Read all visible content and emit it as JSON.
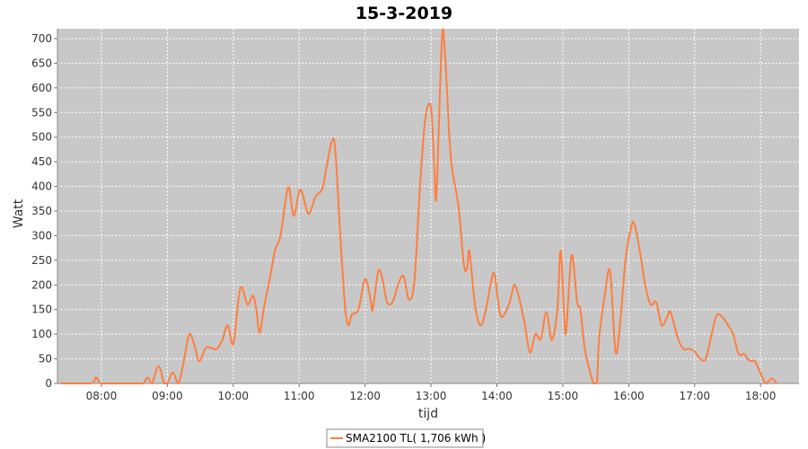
{
  "chart_data": {
    "type": "line",
    "title": "15-3-2019",
    "xlabel": "tijd",
    "ylabel": "Watt",
    "xlim": [
      "07:20",
      "18:35"
    ],
    "ylim": [
      0,
      720
    ],
    "x_ticks": [
      "08:00",
      "09:00",
      "10:00",
      "11:00",
      "12:00",
      "13:00",
      "14:00",
      "15:00",
      "16:00",
      "17:00",
      "18:00"
    ],
    "y_ticks": [
      0,
      50,
      100,
      150,
      200,
      250,
      300,
      350,
      400,
      450,
      500,
      550,
      600,
      650,
      700
    ],
    "grid": true,
    "legend_position": "bottom-center",
    "colors": {
      "series": "#ff7f3f",
      "plot_bg": "#c8c8c8",
      "grid": "#ffffff"
    },
    "series": [
      {
        "name": "SMA2100 TL( 1,706 kWh )",
        "points": [
          [
            "07:23",
            0
          ],
          [
            "07:50",
            0
          ],
          [
            "07:55",
            12
          ],
          [
            "08:00",
            0
          ],
          [
            "08:15",
            0
          ],
          [
            "08:30",
            0
          ],
          [
            "08:38",
            0
          ],
          [
            "08:42",
            12
          ],
          [
            "08:46",
            0
          ],
          [
            "08:52",
            35
          ],
          [
            "08:57",
            0
          ],
          [
            "09:00",
            0
          ],
          [
            "09:05",
            22
          ],
          [
            "09:10",
            0
          ],
          [
            "09:15",
            45
          ],
          [
            "09:20",
            100
          ],
          [
            "09:25",
            75
          ],
          [
            "09:29",
            45
          ],
          [
            "09:35",
            72
          ],
          [
            "09:40",
            72
          ],
          [
            "09:45",
            70
          ],
          [
            "09:50",
            88
          ],
          [
            "09:55",
            118
          ],
          [
            "10:00",
            80
          ],
          [
            "10:05",
            175
          ],
          [
            "10:08",
            195
          ],
          [
            "10:13",
            160
          ],
          [
            "10:18",
            178
          ],
          [
            "10:21",
            150
          ],
          [
            "10:24",
            103
          ],
          [
            "10:28",
            155
          ],
          [
            "10:33",
            210
          ],
          [
            "10:38",
            270
          ],
          [
            "10:43",
            300
          ],
          [
            "10:50",
            398
          ],
          [
            "10:55",
            340
          ],
          [
            "11:00",
            390
          ],
          [
            "11:03",
            385
          ],
          [
            "11:08",
            345
          ],
          [
            "11:12",
            360
          ],
          [
            "11:15",
            380
          ],
          [
            "11:21",
            395
          ],
          [
            "11:25",
            440
          ],
          [
            "11:30",
            493
          ],
          [
            "11:33",
            470
          ],
          [
            "11:38",
            280
          ],
          [
            "11:42",
            150
          ],
          [
            "11:45",
            118
          ],
          [
            "11:48",
            140
          ],
          [
            "11:54",
            150
          ],
          [
            "12:00",
            212
          ],
          [
            "12:05",
            170
          ],
          [
            "12:07",
            150
          ],
          [
            "12:12",
            228
          ],
          [
            "12:16",
            210
          ],
          [
            "12:20",
            165
          ],
          [
            "12:25",
            165
          ],
          [
            "12:30",
            200
          ],
          [
            "12:35",
            218
          ],
          [
            "12:40",
            170
          ],
          [
            "12:45",
            210
          ],
          [
            "12:50",
            400
          ],
          [
            "12:55",
            540
          ],
          [
            "13:00",
            560
          ],
          [
            "13:03",
            440
          ],
          [
            "13:05",
            385
          ],
          [
            "13:10",
            700
          ],
          [
            "13:13",
            660
          ],
          [
            "13:18",
            460
          ],
          [
            "13:25",
            360
          ],
          [
            "13:30",
            240
          ],
          [
            "13:33",
            235
          ],
          [
            "13:35",
            268
          ],
          [
            "13:40",
            160
          ],
          [
            "13:45",
            118
          ],
          [
            "13:50",
            150
          ],
          [
            "13:55",
            210
          ],
          [
            "13:58",
            220
          ],
          [
            "14:03",
            140
          ],
          [
            "14:08",
            145
          ],
          [
            "14:12",
            168
          ],
          [
            "14:16",
            200
          ],
          [
            "14:20",
            175
          ],
          [
            "14:25",
            125
          ],
          [
            "14:30",
            63
          ],
          [
            "14:35",
            100
          ],
          [
            "14:40",
            90
          ],
          [
            "14:45",
            145
          ],
          [
            "14:50",
            88
          ],
          [
            "14:55",
            150
          ],
          [
            "14:58",
            270
          ],
          [
            "15:01",
            150
          ],
          [
            "15:03",
            105
          ],
          [
            "15:08",
            260
          ],
          [
            "15:13",
            165
          ],
          [
            "15:16",
            150
          ],
          [
            "15:20",
            70
          ],
          [
            "15:25",
            22
          ],
          [
            "15:28",
            0
          ],
          [
            "15:31",
            0
          ],
          [
            "15:33",
            90
          ],
          [
            "15:38",
            175
          ],
          [
            "15:43",
            228
          ],
          [
            "15:48",
            65
          ],
          [
            "15:52",
            118
          ],
          [
            "15:57",
            250
          ],
          [
            "16:02",
            315
          ],
          [
            "16:05",
            325
          ],
          [
            "16:10",
            270
          ],
          [
            "16:15",
            200
          ],
          [
            "16:20",
            160
          ],
          [
            "16:25",
            165
          ],
          [
            "16:30",
            118
          ],
          [
            "16:35",
            135
          ],
          [
            "16:38",
            145
          ],
          [
            "16:45",
            90
          ],
          [
            "16:50",
            70
          ],
          [
            "16:55",
            70
          ],
          [
            "17:00",
            65
          ],
          [
            "17:05",
            50
          ],
          [
            "17:10",
            50
          ],
          [
            "17:15",
            95
          ],
          [
            "17:20",
            138
          ],
          [
            "17:25",
            135
          ],
          [
            "17:30",
            120
          ],
          [
            "17:35",
            100
          ],
          [
            "17:40",
            60
          ],
          [
            "17:45",
            60
          ],
          [
            "17:48",
            50
          ],
          [
            "17:52",
            45
          ],
          [
            "17:55",
            45
          ],
          [
            "18:00",
            20
          ],
          [
            "18:05",
            0
          ],
          [
            "18:10",
            10
          ],
          [
            "18:15",
            0
          ]
        ]
      }
    ]
  }
}
